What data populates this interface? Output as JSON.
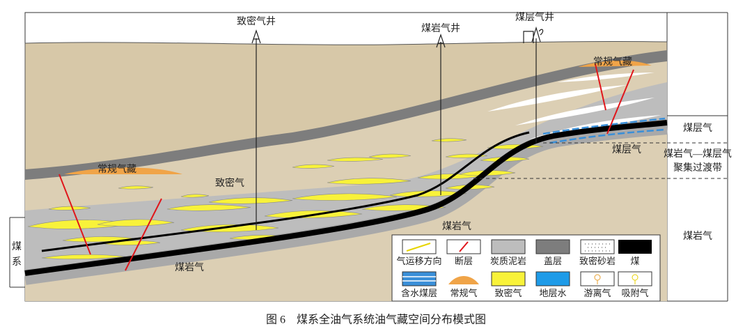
{
  "wells": [
    {
      "label": "致密气井"
    },
    {
      "label": "煤岩气井"
    },
    {
      "label": "煤层气井"
    }
  ],
  "labels": {
    "conventional_left": "常规气藏",
    "conventional_right": "常规气藏",
    "tight_gas": "致密气",
    "coal_rock_gas_mid": "煤岩气",
    "coal_rock_gas_left": "煤岩气",
    "coalbed_gas": "煤层气"
  },
  "left_label": [
    "煤",
    "系"
  ],
  "right_zones": {
    "top": "煤层气",
    "transition": [
      "煤岩气—煤层气",
      "聚集过渡带"
    ],
    "bottom": "煤岩气"
  },
  "legend": [
    "气运移方向",
    "断层",
    "炭质泥岩",
    "盖层",
    "致密砂岩",
    "煤",
    "含水煤层",
    "常规气",
    "致密气",
    "地层水",
    "游离气",
    "吸附气"
  ],
  "caption": "图 6　煤系全油气系统油气藏空间分布模式图"
}
